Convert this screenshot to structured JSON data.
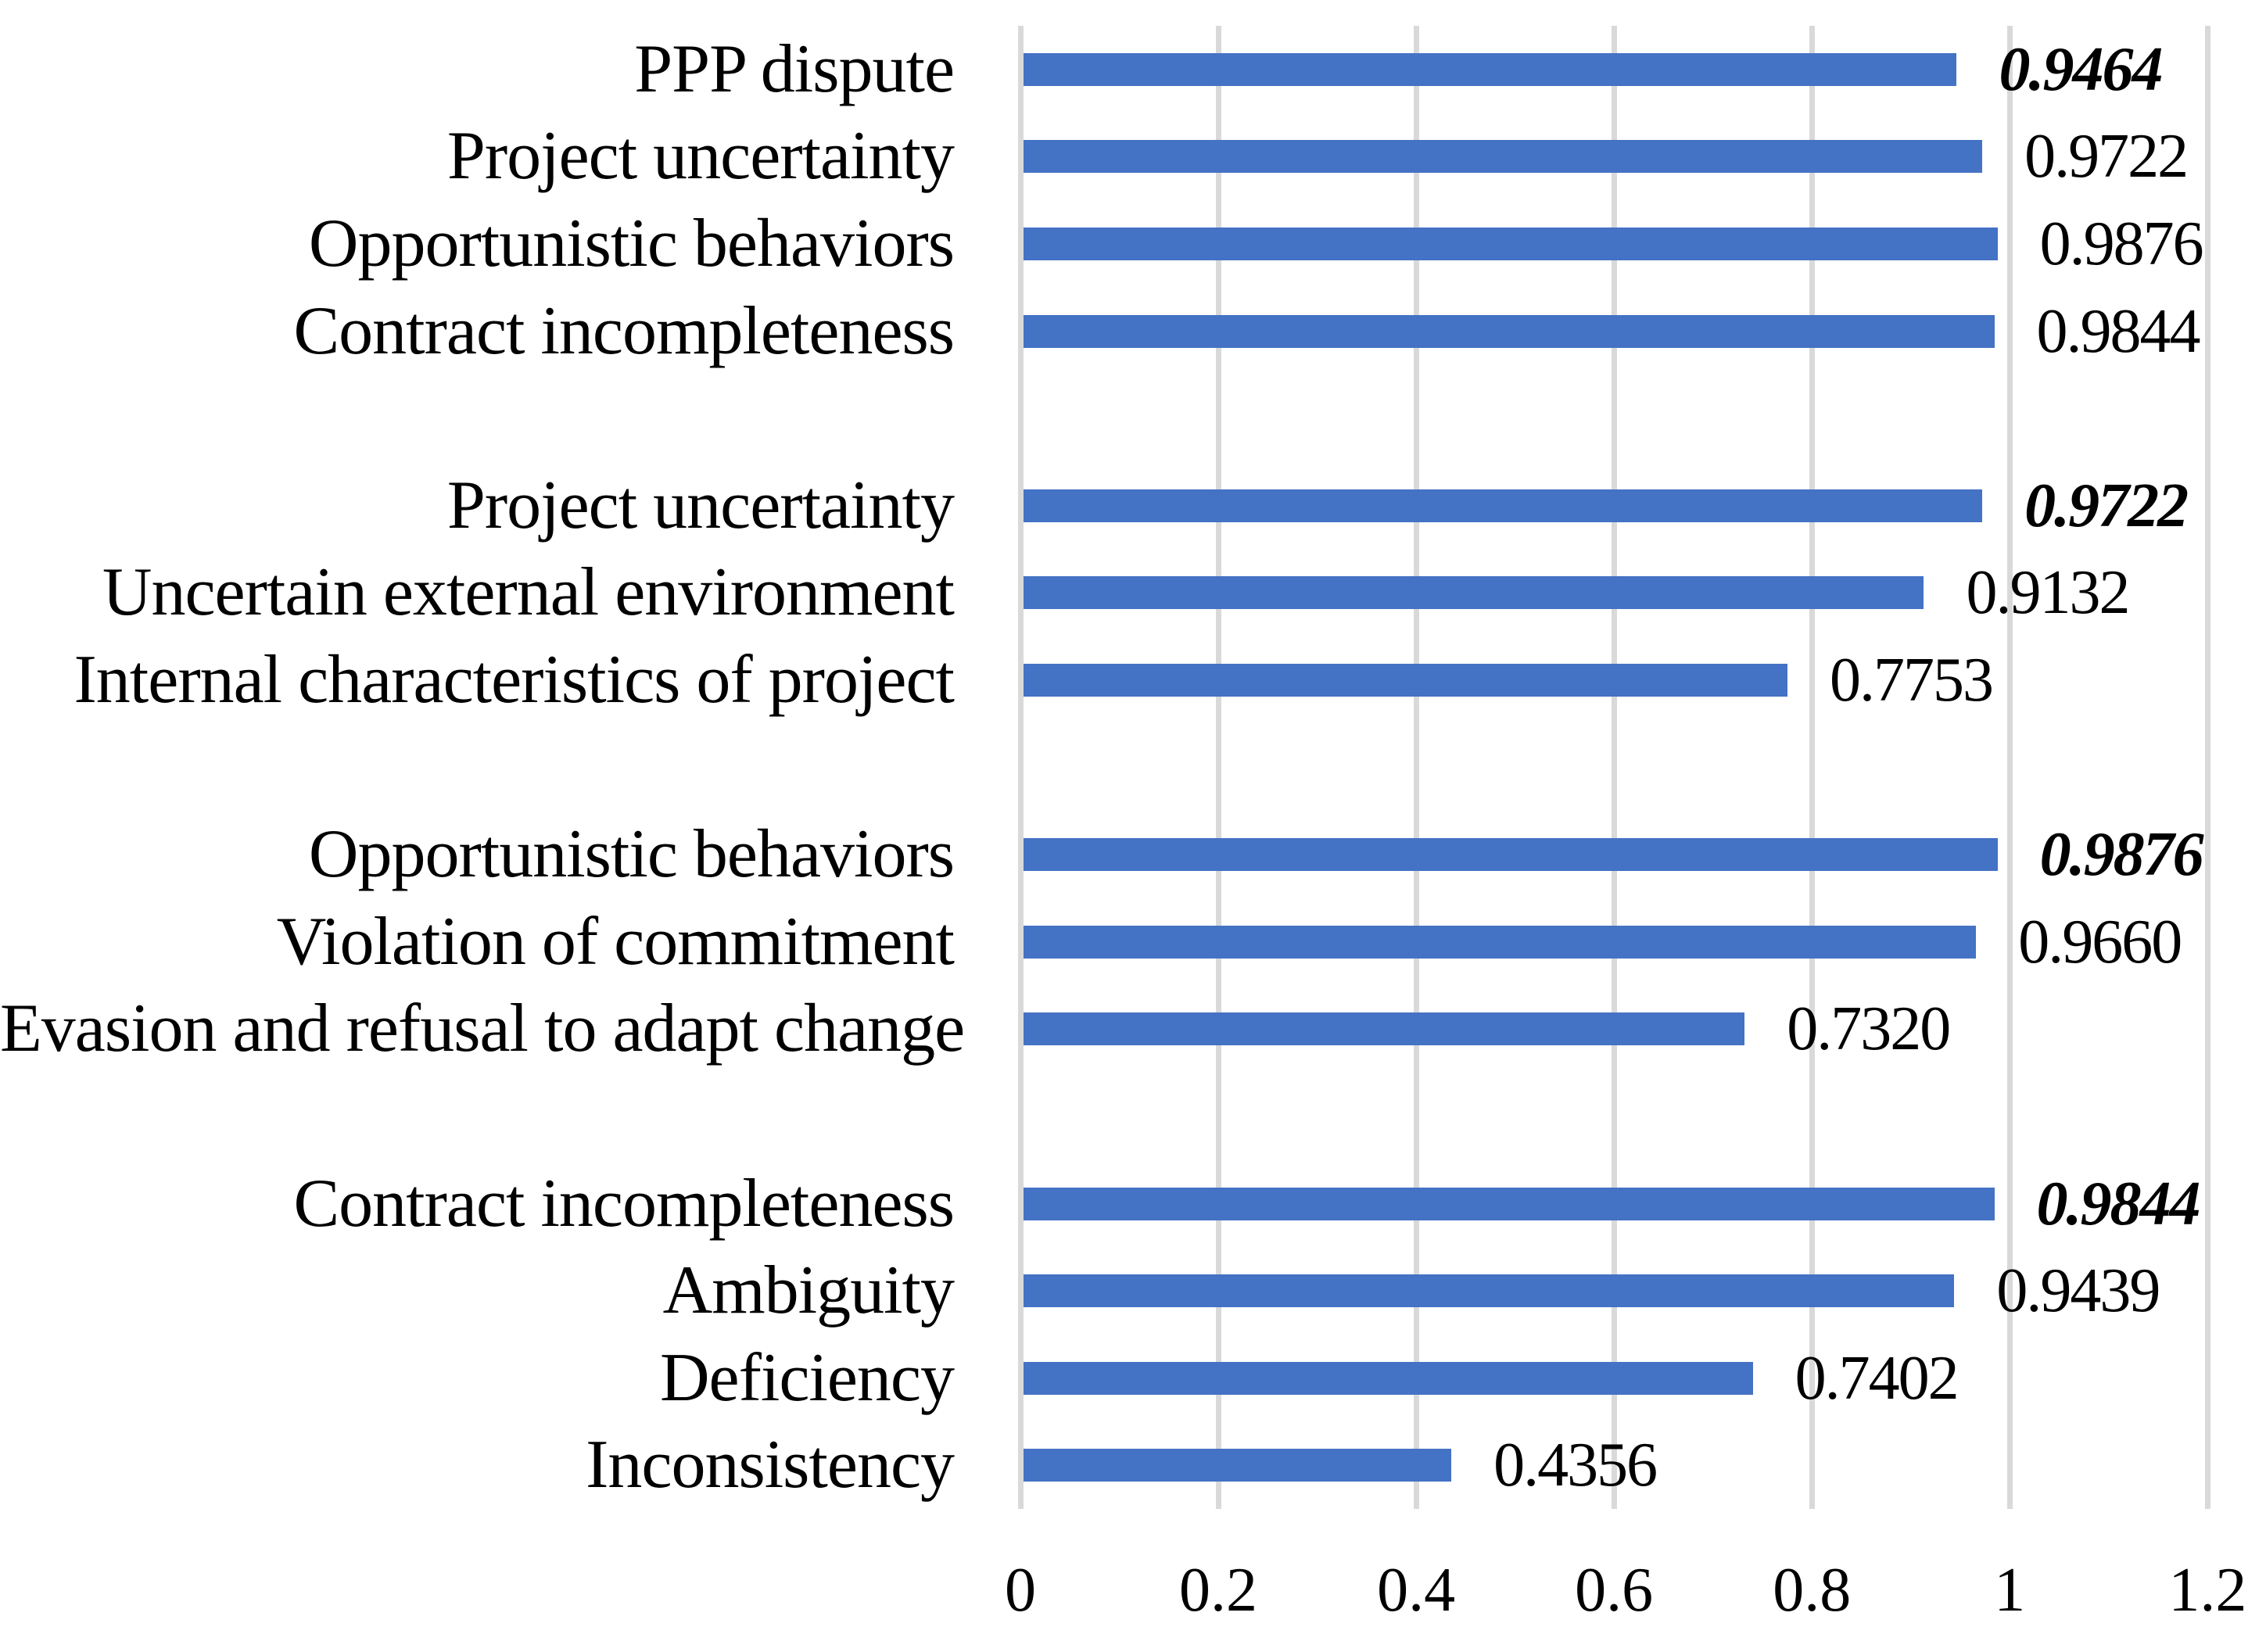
{
  "figure": {
    "background": "#FFFFFF",
    "bar_color": "#4472C4",
    "gridline_color": "#D9D9D9",
    "text_color": "#000000"
  },
  "chart_data": {
    "type": "bar",
    "orientation": "horizontal",
    "title": "",
    "xlabel": "",
    "ylabel": "",
    "xlim": [
      0,
      1.2
    ],
    "grid": true,
    "legend": false,
    "value_labels": "right-of-bar",
    "header_value_style": "bold-italic",
    "x_ticks": [
      {
        "value": 0,
        "label": "0"
      },
      {
        "value": 0.2,
        "label": "0.2"
      },
      {
        "value": 0.4,
        "label": "0.4"
      },
      {
        "value": 0.6,
        "label": "0.6"
      },
      {
        "value": 0.8,
        "label": "0.8"
      },
      {
        "value": 1,
        "label": "1"
      },
      {
        "value": 1.2,
        "label": "1.2"
      }
    ],
    "groups": [
      {
        "header": {
          "label": "PPP dispute",
          "value": 0.9464,
          "display": "0.9464"
        },
        "children": [
          {
            "label": "Project uncertainty",
            "value": 0.9722,
            "display": "0.9722"
          },
          {
            "label": "Opportunistic behaviors",
            "value": 0.9876,
            "display": "0.9876"
          },
          {
            "label": "Contract incompleteness",
            "value": 0.9844,
            "display": "0.9844"
          }
        ]
      },
      {
        "header": {
          "label": "Project uncertainty",
          "value": 0.9722,
          "display": "0.9722"
        },
        "children": [
          {
            "label": "Uncertain external environment",
            "value": 0.9132,
            "display": "0.9132"
          },
          {
            "label": "Internal characteristics of project",
            "value": 0.7753,
            "display": "0.7753"
          }
        ]
      },
      {
        "header": {
          "label": "Opportunistic behaviors",
          "value": 0.9876,
          "display": "0.9876"
        },
        "children": [
          {
            "label": "Violation of commitment",
            "value": 0.966,
            "display": "0.9660"
          },
          {
            "label": "Evasion and refusal to adapt change",
            "value": 0.732,
            "display": "0.7320"
          }
        ]
      },
      {
        "header": {
          "label": "Contract incompleteness",
          "value": 0.9844,
          "display": "0.9844"
        },
        "children": [
          {
            "label": "Ambiguity",
            "value": 0.9439,
            "display": "0.9439"
          },
          {
            "label": "Deficiency",
            "value": 0.7402,
            "display": "0.7402"
          },
          {
            "label": "Inconsistency",
            "value": 0.4356,
            "display": "0.4356"
          }
        ]
      }
    ]
  }
}
